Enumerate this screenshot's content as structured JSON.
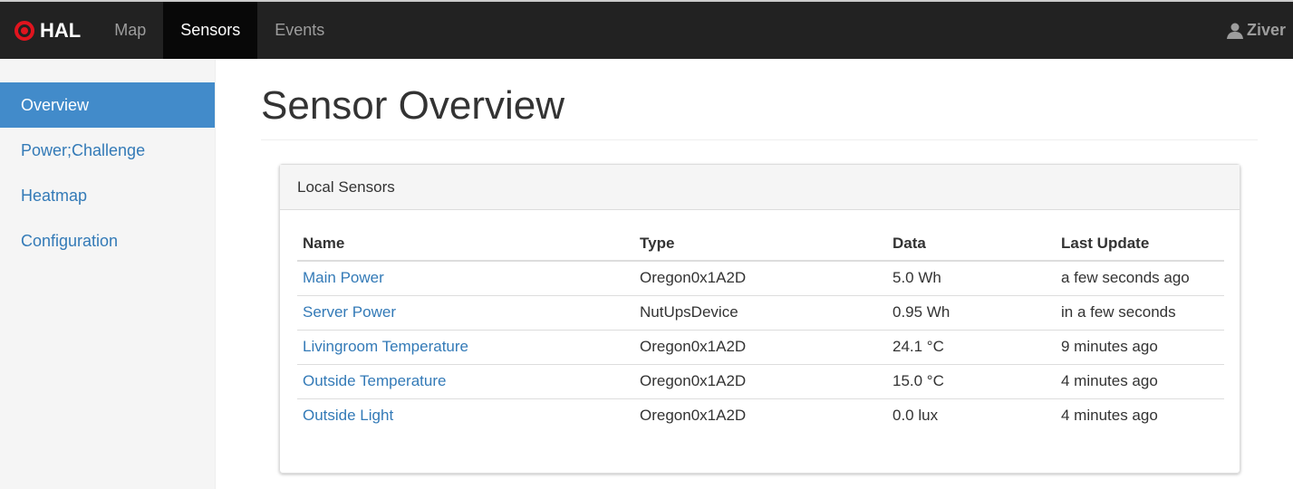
{
  "nav": {
    "brand": "HAL",
    "items": [
      {
        "label": "Map"
      },
      {
        "label": "Sensors"
      },
      {
        "label": "Events"
      }
    ],
    "user": "Ziver"
  },
  "sidebar": {
    "items": [
      {
        "label": "Overview"
      },
      {
        "label": "Power;Challenge"
      },
      {
        "label": "Heatmap"
      },
      {
        "label": "Configuration"
      }
    ]
  },
  "main": {
    "title": "Sensor Overview",
    "panel": {
      "title": "Local Sensors",
      "columns": [
        "Name",
        "Type",
        "Data",
        "Last Update"
      ],
      "rows": [
        [
          "Main Power",
          "Oregon0x1A2D",
          "5.0 Wh",
          "a few seconds ago"
        ],
        [
          "Server Power",
          "NutUpsDevice",
          "0.95 Wh",
          "in a few seconds"
        ],
        [
          "Livingroom Temperature",
          "Oregon0x1A2D",
          "24.1 °C",
          "9 minutes ago"
        ],
        [
          "Outside Temperature",
          "Oregon0x1A2D",
          "15.0 °C",
          "4 minutes ago"
        ],
        [
          "Outside Light",
          "Oregon0x1A2D",
          "0.0 lux",
          "4 minutes ago"
        ]
      ]
    }
  }
}
